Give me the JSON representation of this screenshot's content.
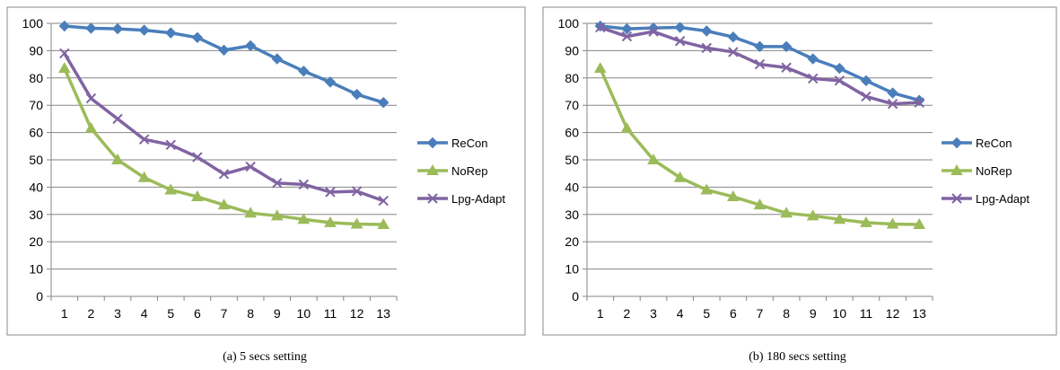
{
  "colors": {
    "recon": "#4a7ebb",
    "norep": "#9bbb59",
    "lpg": "#8064a2"
  },
  "chart_data": [
    {
      "type": "line",
      "caption": "(a)  5 secs setting",
      "categories": [
        "1",
        "2",
        "3",
        "4",
        "5",
        "6",
        "7",
        "8",
        "9",
        "10",
        "11",
        "12",
        "13"
      ],
      "ylim": [
        0,
        100
      ],
      "yticks": [
        "0",
        "10",
        "20",
        "30",
        "40",
        "50",
        "60",
        "70",
        "80",
        "90",
        "100"
      ],
      "grid": true,
      "legend_position": "right",
      "series": [
        {
          "name": "ReCon",
          "marker": "diamond",
          "values": [
            99,
            98.2,
            98,
            97.5,
            96.5,
            94.8,
            90.2,
            91.8,
            87,
            82.5,
            78.5,
            74,
            71
          ]
        },
        {
          "name": "NoRep",
          "marker": "triangle",
          "values": [
            83.5,
            61.5,
            50,
            43.5,
            39,
            36.5,
            33.5,
            30.5,
            29.5,
            28.2,
            27,
            26.5,
            26.3
          ]
        },
        {
          "name": "Lpg-Adapt",
          "marker": "x",
          "values": [
            89,
            72.5,
            65,
            57.5,
            55.5,
            51,
            44.8,
            47.5,
            41.5,
            41,
            38.2,
            38.5,
            35
          ]
        }
      ]
    },
    {
      "type": "line",
      "caption": "(b)  180 secs setting",
      "categories": [
        "1",
        "2",
        "3",
        "4",
        "5",
        "6",
        "7",
        "8",
        "9",
        "10",
        "11",
        "12",
        "13"
      ],
      "ylim": [
        0,
        100
      ],
      "yticks": [
        "0",
        "10",
        "20",
        "30",
        "40",
        "50",
        "60",
        "70",
        "80",
        "90",
        "100"
      ],
      "grid": true,
      "legend_position": "right",
      "series": [
        {
          "name": "ReCon",
          "marker": "diamond",
          "values": [
            99,
            98,
            98.3,
            98.5,
            97.2,
            95,
            91.5,
            91.5,
            87,
            83.5,
            79,
            74.5,
            71.8
          ]
        },
        {
          "name": "NoRep",
          "marker": "triangle",
          "values": [
            83.5,
            61.5,
            50,
            43.5,
            39,
            36.5,
            33.5,
            30.5,
            29.5,
            28.2,
            27,
            26.5,
            26.3
          ]
        },
        {
          "name": "Lpg-Adapt",
          "marker": "x",
          "values": [
            98.5,
            95.2,
            97,
            93.5,
            91,
            89.5,
            85,
            83.8,
            79.8,
            79,
            73.2,
            70.5,
            71
          ]
        }
      ]
    }
  ]
}
